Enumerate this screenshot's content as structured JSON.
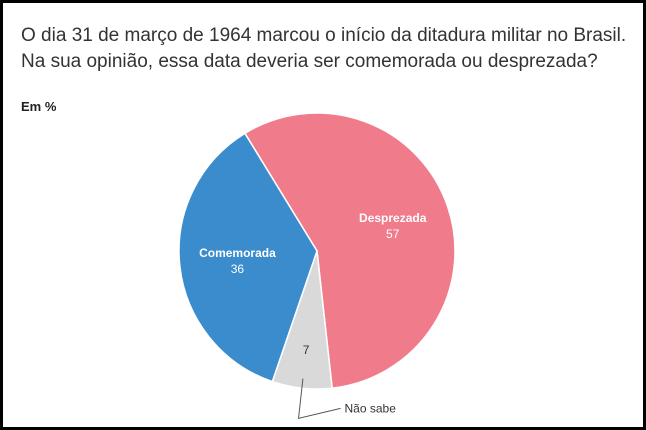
{
  "title": "O dia 31 de março de 1964 marcou o início da ditadura militar no Brasil. Na sua opinião, essa data deveria ser comemorada ou desprezada?",
  "unit_label": "Em %",
  "chart_data": {
    "type": "pie",
    "title": "O dia 31 de março de 1964 marcou o início da ditadura militar no Brasil. Na sua opinião, essa data deveria ser comemorada ou desprezada?",
    "unit": "Em %",
    "slices": [
      {
        "label": "Desprezada",
        "value": 57,
        "color": "#f07b8a"
      },
      {
        "label": "Não sabe",
        "value": 7,
        "color": "#d9d9d9"
      },
      {
        "label": "Comemorada",
        "value": 36,
        "color": "#3b8ccc"
      }
    ]
  }
}
